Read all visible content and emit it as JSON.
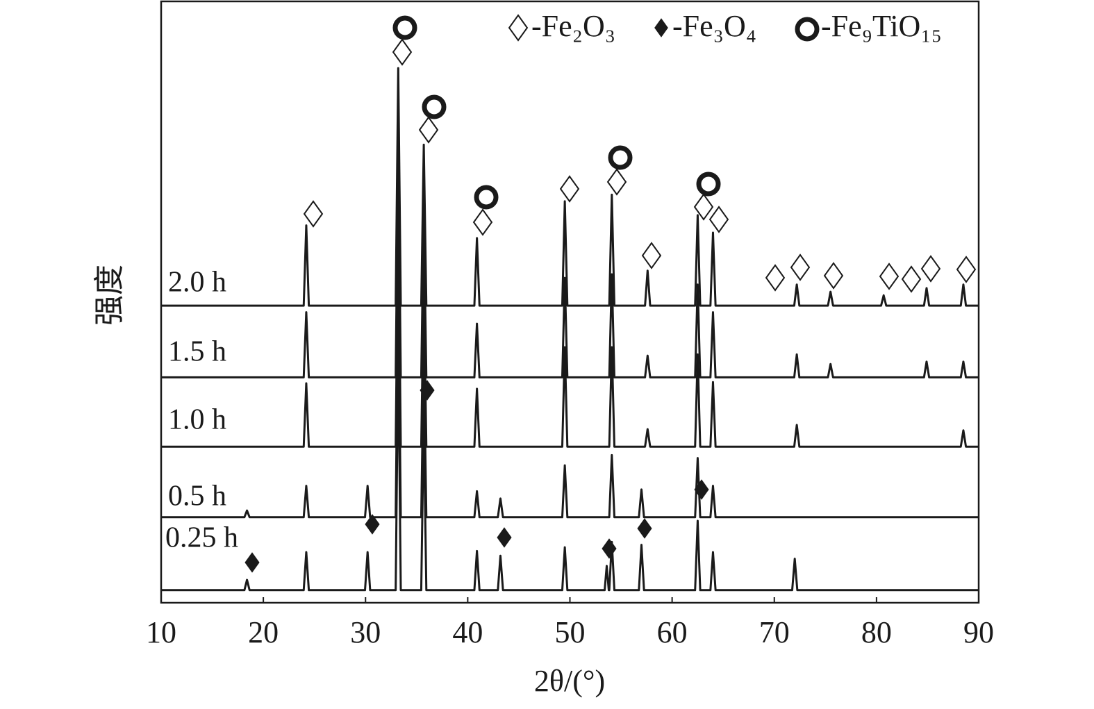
{
  "chart_data": {
    "type": "line",
    "x_label": "2θ/(°)",
    "y_label": "强度",
    "xlim": [
      10,
      90
    ],
    "xticks": [
      10,
      20,
      30,
      40,
      50,
      60,
      70,
      80,
      90
    ],
    "ylim": [
      0,
      100
    ],
    "legend": [
      "-Fe₂O₃",
      "-Fe₃O₄",
      "-Fe₉TiO₁₅"
    ],
    "series": [
      {
        "name": "2.0 h",
        "color": "#1a1a1a",
        "x": [
          10,
          23.95,
          24.2,
          24.45,
          32.95,
          33.2,
          33.45,
          35.45,
          35.7,
          35.95,
          40.65,
          40.9,
          41.15,
          49.25,
          49.5,
          49.75,
          53.85,
          54.1,
          54.35,
          57.35,
          57.6,
          57.85,
          62.25,
          62.5,
          62.75,
          63.75,
          64.0,
          64.25,
          71.95,
          72.2,
          72.45,
          75.25,
          75.5,
          75.75,
          80.45,
          80.7,
          80.95,
          84.65,
          84.9,
          85.15,
          88.25,
          88.5,
          88.75,
          90
        ],
        "values": [
          49.3,
          49.3,
          62.6,
          49.3,
          49.3,
          88.7,
          49.3,
          49.3,
          76.0,
          49.3,
          49.3,
          60.5,
          49.3,
          49.3,
          66.6,
          49.3,
          49.3,
          67.7,
          49.3,
          49.3,
          55.1,
          49.3,
          49.3,
          64.3,
          49.3,
          49.3,
          61.4,
          49.3,
          49.3,
          52.8,
          49.3,
          49.3,
          51.6,
          49.3,
          49.3,
          51.0,
          49.3,
          49.3,
          52.2,
          49.3,
          49.3,
          52.8,
          49.3,
          49.3
        ]
      },
      {
        "name": "1.5 h",
        "color": "#1a1a1a",
        "x": [
          10,
          23.95,
          24.2,
          24.45,
          32.95,
          33.2,
          33.45,
          35.45,
          35.7,
          35.95,
          40.65,
          40.9,
          41.15,
          49.25,
          49.5,
          49.75,
          53.85,
          54.1,
          54.35,
          57.35,
          57.6,
          57.85,
          62.25,
          62.5,
          62.75,
          63.75,
          64.0,
          64.25,
          71.95,
          72.2,
          72.45,
          75.25,
          75.5,
          75.75,
          84.65,
          84.9,
          85.15,
          88.25,
          88.5,
          88.75,
          90
        ],
        "values": [
          37.4,
          37.4,
          48.2,
          37.4,
          37.4,
          77.0,
          37.4,
          37.4,
          65.4,
          37.4,
          37.4,
          46.3,
          37.4,
          37.4,
          53.9,
          37.4,
          37.4,
          54.5,
          37.4,
          37.4,
          41.0,
          37.4,
          37.4,
          52.8,
          37.4,
          37.4,
          48.2,
          37.4,
          37.4,
          41.2,
          37.4,
          37.4,
          39.6,
          37.4,
          37.4,
          40.0,
          37.4,
          37.4,
          40.0,
          37.4,
          37.4
        ]
      },
      {
        "name": "1.0 h",
        "color": "#1a1a1a",
        "x": [
          10,
          23.95,
          24.2,
          24.45,
          32.95,
          33.2,
          33.45,
          35.45,
          35.7,
          35.95,
          40.65,
          40.9,
          41.15,
          49.25,
          49.5,
          49.75,
          53.85,
          54.1,
          54.35,
          57.35,
          57.6,
          57.85,
          62.25,
          62.5,
          62.75,
          63.75,
          64.0,
          64.25,
          71.95,
          72.2,
          72.45,
          88.25,
          88.5,
          88.75,
          90
        ],
        "values": [
          25.9,
          25.9,
          36.4,
          25.9,
          25.9,
          65.4,
          25.9,
          25.9,
          53.9,
          25.9,
          25.9,
          35.5,
          25.9,
          25.9,
          42.4,
          25.9,
          25.9,
          42.4,
          25.9,
          25.9,
          28.8,
          25.9,
          25.9,
          41.2,
          25.9,
          25.9,
          36.6,
          25.9,
          25.9,
          29.5,
          25.9,
          25.9,
          28.6,
          25.9,
          25.9
        ]
      },
      {
        "name": "0.5 h",
        "color": "#1a1a1a",
        "x": [
          10,
          18.15,
          18.4,
          18.65,
          23.95,
          24.2,
          24.45,
          29.95,
          30.2,
          30.45,
          32.95,
          33.2,
          33.45,
          35.45,
          35.7,
          35.95,
          40.65,
          40.9,
          41.15,
          42.95,
          43.2,
          43.45,
          49.25,
          49.5,
          49.75,
          53.85,
          54.1,
          54.35,
          56.75,
          57.0,
          57.25,
          62.25,
          62.5,
          62.75,
          63.75,
          64.0,
          64.25,
          90
        ],
        "values": [
          14.2,
          14.2,
          15.3,
          14.2,
          14.2,
          19.4,
          14.2,
          14.2,
          19.4,
          14.2,
          14.2,
          53.9,
          14.2,
          14.2,
          42.4,
          14.2,
          14.2,
          18.5,
          14.2,
          14.2,
          17.3,
          14.2,
          14.2,
          22.8,
          14.2,
          14.2,
          24.5,
          14.2,
          14.2,
          18.8,
          14.2,
          14.2,
          24.0,
          14.2,
          14.2,
          19.4,
          14.2,
          14.2
        ]
      },
      {
        "name": "0.25 h",
        "color": "#1a1a1a",
        "x": [
          10,
          18.15,
          18.4,
          18.65,
          23.95,
          24.2,
          24.45,
          29.95,
          30.2,
          30.45,
          32.95,
          33.2,
          33.45,
          35.45,
          35.7,
          35.95,
          40.65,
          40.9,
          41.15,
          42.95,
          43.2,
          43.45,
          49.25,
          49.5,
          49.75,
          53.4,
          53.6,
          53.8,
          53.85,
          54.1,
          54.35,
          56.75,
          57.0,
          57.25,
          62.25,
          62.5,
          62.75,
          63.75,
          64.0,
          64.25,
          71.75,
          72.0,
          72.25,
          90
        ],
        "values": [
          2.1,
          2.1,
          3.8,
          2.1,
          2.1,
          8.4,
          2.1,
          2.1,
          8.4,
          2.1,
          2.1,
          42.4,
          2.1,
          2.1,
          30.9,
          2.1,
          2.1,
          8.6,
          2.1,
          2.1,
          7.8,
          2.1,
          2.1,
          9.2,
          2.1,
          2.1,
          6.1,
          2.1,
          2.1,
          10.1,
          2.1,
          2.1,
          9.6,
          2.1,
          2.1,
          13.6,
          2.1,
          2.1,
          8.4,
          2.1,
          2.1,
          7.3,
          2.1,
          2.1
        ]
      }
    ]
  }
}
